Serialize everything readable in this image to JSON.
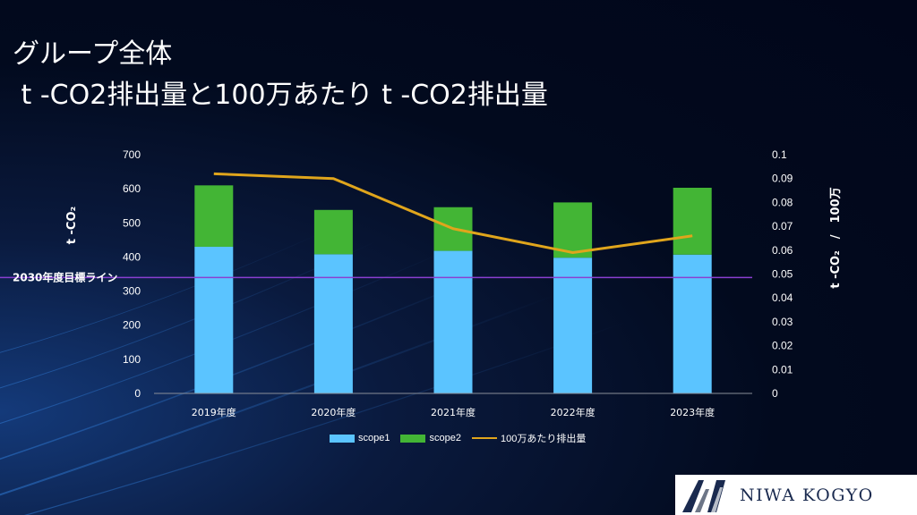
{
  "title": {
    "line1": "グループ全体",
    "line2": " t -CO2排出量と100万あたり t -CO2排出量"
  },
  "colors": {
    "scope1": "#5bc4ff",
    "scope2": "#43b535",
    "intensity_line": "#e0a51c",
    "target_line": "#8a3fd1"
  },
  "chart_data": {
    "type": "bar",
    "categories": [
      "2019年度",
      "2020年度",
      "2021年度",
      "2022年度",
      "2023年度"
    ],
    "series": [
      {
        "name": "scope1",
        "type": "bar",
        "stack": true,
        "axis": "left",
        "values": [
          430,
          408,
          418,
          398,
          407
        ]
      },
      {
        "name": "scope2",
        "type": "bar",
        "stack": true,
        "axis": "left",
        "values": [
          180,
          130,
          128,
          162,
          196
        ]
      },
      {
        "name": "100万あたり排出量",
        "type": "line",
        "axis": "right",
        "values": [
          0.092,
          0.09,
          0.069,
          0.059,
          0.066
        ]
      }
    ],
    "y_left": {
      "label": "t -CO₂",
      "ylim": [
        0,
        700
      ],
      "ticks": [
        0,
        100,
        200,
        300,
        400,
        500,
        600,
        700
      ]
    },
    "y_right": {
      "label": "t -CO₂　/　100万",
      "ylim": [
        0,
        0.1
      ],
      "ticks": [
        "0",
        "0.01",
        "0.02",
        "0.03",
        "0.04",
        "0.05",
        "0.06",
        "0.07",
        "0.08",
        "0.09",
        "0.1"
      ]
    },
    "annotations": [
      {
        "text": "2030年度目標ライン",
        "axis": "left",
        "value": 340
      }
    ],
    "legend": {
      "position": "bottom",
      "entries": [
        "scope1",
        "scope2",
        "100万あたり排出量"
      ]
    },
    "grid": false
  },
  "logo": {
    "text": "NIWA KOGYO"
  }
}
